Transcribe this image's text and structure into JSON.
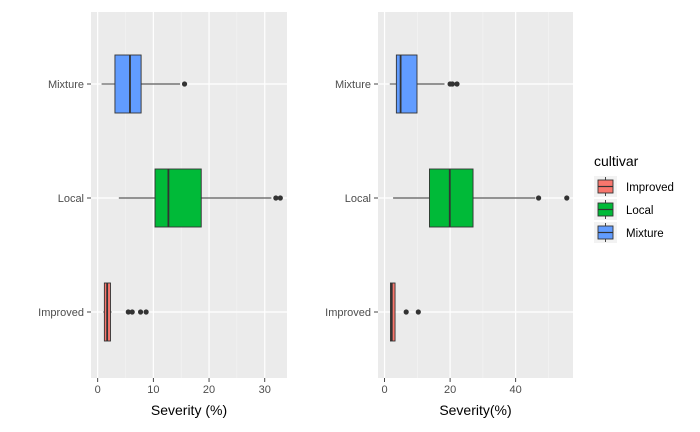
{
  "chart_data": [
    {
      "type": "boxplot",
      "orientation": "horizontal",
      "xlabel": "Severity (%)",
      "ylabel": "",
      "xlim": [
        -1.2,
        34.0
      ],
      "xticks": [
        0,
        10,
        20,
        30
      ],
      "categories": [
        "Improved",
        "Local",
        "Mixture"
      ],
      "boxes": [
        {
          "category": "Improved",
          "min": 1.0,
          "q1": 1.2,
          "median": 1.7,
          "q3": 2.3,
          "max": 2.5,
          "outliers": [
            5.5,
            6.2,
            7.7,
            8.7
          ]
        },
        {
          "category": "Local",
          "min": 3.8,
          "q1": 10.3,
          "median": 12.7,
          "q3": 18.6,
          "max": 31.2,
          "outliers": [
            32.0,
            32.8
          ]
        },
        {
          "category": "Mixture",
          "min": 0.7,
          "q1": 3.1,
          "median": 5.8,
          "q3": 7.8,
          "max": 14.8,
          "outliers": [
            15.6
          ]
        }
      ]
    },
    {
      "type": "boxplot",
      "orientation": "horizontal",
      "xlabel": "Severity(%)",
      "ylabel": "",
      "xlim": [
        -2.0,
        57.5
      ],
      "xticks": [
        0,
        20,
        40
      ],
      "categories": [
        "Improved",
        "Local",
        "Mixture"
      ],
      "boxes": [
        {
          "category": "Improved",
          "min": 1.8,
          "q1": 1.8,
          "median": 2.2,
          "q3": 3.2,
          "max": 3.2,
          "outliers": [
            6.6,
            10.3
          ]
        },
        {
          "category": "Local",
          "min": 2.6,
          "q1": 13.7,
          "median": 19.9,
          "q3": 27.0,
          "max": 46.0,
          "outliers": [
            47.0,
            55.6
          ]
        },
        {
          "category": "Mixture",
          "min": 1.6,
          "q1": 3.6,
          "median": 4.9,
          "q3": 9.9,
          "max": 18.3,
          "outliers": [
            20.0,
            20.7,
            22.1
          ]
        }
      ]
    }
  ],
  "legend": {
    "title": "cultivar",
    "entries": [
      {
        "label": "Improved",
        "color": "#F8766D"
      },
      {
        "label": "Local",
        "color": "#00BA38"
      },
      {
        "label": "Mixture",
        "color": "#619CFF"
      }
    ]
  },
  "colors": {
    "panel_bg": "#EBEBEB",
    "grid_major": "#FFFFFF",
    "grid_minor": "#F5F5F5",
    "axis_text": "#4D4D4D",
    "title_text": "#000000"
  }
}
